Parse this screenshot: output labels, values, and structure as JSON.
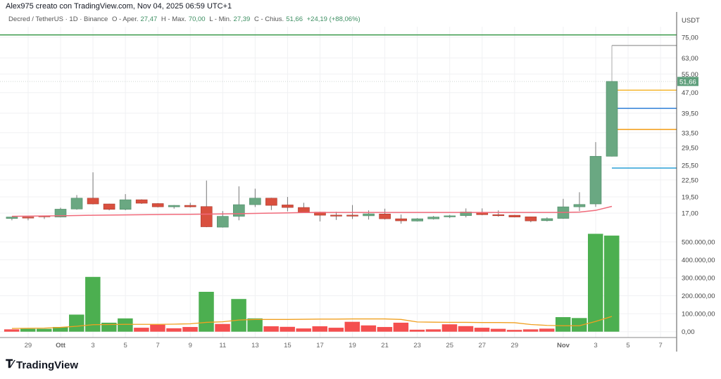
{
  "header": {
    "text": "Alex975 creato con TradingView.com, Nov 04, 2025 06:59 UTC+1"
  },
  "legend": {
    "symbol": "Decred / TetherUS · 1D · Binance",
    "open_label": "O - Aper.",
    "open": "27,47",
    "high_label": "H - Max.",
    "high": "70,00",
    "low_label": "L - Min.",
    "low": "27,39",
    "close_label": "C - Chius.",
    "close": "51,66",
    "change": "+24,19 (+88,06%)"
  },
  "price_axis": {
    "currency": "USDT",
    "scale": "log",
    "ticks": [
      {
        "value": 75,
        "label": "75,00"
      },
      {
        "value": 63,
        "label": "63,00"
      },
      {
        "value": 55,
        "label": "55,00"
      },
      {
        "value": 47,
        "label": "47,00"
      },
      {
        "value": 39.5,
        "label": "39,50"
      },
      {
        "value": 33.5,
        "label": "33,50"
      },
      {
        "value": 29.5,
        "label": "29,50"
      },
      {
        "value": 25.5,
        "label": "25,50"
      },
      {
        "value": 22.5,
        "label": "22,50"
      },
      {
        "value": 19.5,
        "label": "19,50"
      },
      {
        "value": 17,
        "label": "17,00"
      }
    ],
    "last_price": {
      "value": 51.66,
      "label": "51,66",
      "color": "#5f9f7c"
    }
  },
  "volume_axis": {
    "ticks": [
      {
        "value": 500000000,
        "label": "500.000,00"
      },
      {
        "value": 400000000,
        "label": "400.000,00"
      },
      {
        "value": 300000000,
        "label": "300.000,00"
      },
      {
        "value": 200000000,
        "label": "200.000,00"
      },
      {
        "value": 100000000,
        "label": "100.000,00"
      },
      {
        "value": 0,
        "label": "0,00"
      }
    ]
  },
  "x_axis": {
    "labels": [
      {
        "date": "2025-09-29",
        "label": "29"
      },
      {
        "date": "2025-10-01",
        "label": "Ott",
        "bold": true
      },
      {
        "date": "2025-10-03",
        "label": "3"
      },
      {
        "date": "2025-10-05",
        "label": "5"
      },
      {
        "date": "2025-10-07",
        "label": "7"
      },
      {
        "date": "2025-10-09",
        "label": "9"
      },
      {
        "date": "2025-10-11",
        "label": "11"
      },
      {
        "date": "2025-10-13",
        "label": "13"
      },
      {
        "date": "2025-10-15",
        "label": "15"
      },
      {
        "date": "2025-10-17",
        "label": "17"
      },
      {
        "date": "2025-10-19",
        "label": "19"
      },
      {
        "date": "2025-10-21",
        "label": "21"
      },
      {
        "date": "2025-10-23",
        "label": "23"
      },
      {
        "date": "2025-10-25",
        "label": "25"
      },
      {
        "date": "2025-10-27",
        "label": "27"
      },
      {
        "date": "2025-10-29",
        "label": "29"
      },
      {
        "date": "2025-11-01",
        "label": "Nov",
        "bold": true
      },
      {
        "date": "2025-11-03",
        "label": "3"
      },
      {
        "date": "2025-11-05",
        "label": "5"
      },
      {
        "date": "2025-11-07",
        "label": "7"
      }
    ]
  },
  "colors": {
    "up": "#6aa882",
    "down": "#d9503f",
    "vol_up": "#4caf50",
    "vol_down": "#f44f4f",
    "price_ma": "#f06a7a",
    "volume_ma": "#f0a020"
  },
  "chart_data": {
    "type": "candlestick",
    "candles": [
      {
        "date": "2025-09-28",
        "o": 16.25,
        "h": 16.46,
        "l": 16.0,
        "c": 16.45,
        "vol": 13000000,
        "vol_up": false,
        "ma": 16.55,
        "vma": 18000000
      },
      {
        "date": "2025-09-29",
        "o": 16.45,
        "h": 16.46,
        "l": 16.0,
        "c": 16.42,
        "vol": 16000000,
        "vol_up": true,
        "ma": 16.58,
        "vma": 19000000
      },
      {
        "date": "2025-09-30",
        "o": 16.62,
        "h": 16.65,
        "l": 16.18,
        "c": 16.58,
        "vol": 16000000,
        "vol_up": true,
        "ma": 16.6,
        "vma": 20000000
      },
      {
        "date": "2025-10-01",
        "o": 16.45,
        "h": 17.8,
        "l": 16.4,
        "c": 17.58,
        "vol": 26000000,
        "vol_up": true,
        "ma": 16.62,
        "vma": 24000000
      },
      {
        "date": "2025-10-02",
        "o": 17.6,
        "h": 19.8,
        "l": 17.5,
        "c": 19.29,
        "vol": 95000000,
        "vol_up": true,
        "ma": 16.66,
        "vma": 30000000
      },
      {
        "date": "2025-10-03",
        "o": 19.29,
        "h": 23.99,
        "l": 18.3,
        "c": 18.37,
        "vol": 305000000,
        "vol_up": true,
        "ma": 16.7,
        "vma": 39000000
      },
      {
        "date": "2025-10-04",
        "o": 18.37,
        "h": 18.4,
        "l": 17.4,
        "c": 17.55,
        "vol": 50000000,
        "vol_up": true,
        "ma": 16.72,
        "vma": 40000000
      },
      {
        "date": "2025-10-05",
        "o": 17.55,
        "h": 19.96,
        "l": 17.42,
        "c": 19.03,
        "vol": 74000000,
        "vol_up": true,
        "ma": 16.75,
        "vma": 41000000
      },
      {
        "date": "2025-10-06",
        "o": 19.03,
        "h": 19.1,
        "l": 18.37,
        "c": 18.48,
        "vol": 22000000,
        "vol_up": false,
        "ma": 16.77,
        "vma": 41000000
      },
      {
        "date": "2025-10-07",
        "o": 18.43,
        "h": 18.5,
        "l": 17.85,
        "c": 17.93,
        "vol": 39000000,
        "vol_up": false,
        "ma": 16.8,
        "vma": 41000000
      },
      {
        "date": "2025-10-08",
        "o": 17.93,
        "h": 18.2,
        "l": 17.65,
        "c": 18.15,
        "vol": 19000000,
        "vol_up": false,
        "ma": 16.82,
        "vma": 42000000
      },
      {
        "date": "2025-10-09",
        "o": 18.15,
        "h": 18.55,
        "l": 17.83,
        "c": 17.93,
        "vol": 26000000,
        "vol_up": false,
        "ma": 16.84,
        "vma": 44000000
      },
      {
        "date": "2025-10-10",
        "o": 17.97,
        "h": 22.38,
        "l": 15.1,
        "c": 15.15,
        "vol": 222000000,
        "vol_up": true,
        "ma": 16.86,
        "vma": 52000000
      },
      {
        "date": "2025-10-11",
        "o": 15.1,
        "h": 17.3,
        "l": 15.05,
        "c": 16.55,
        "vol": 43000000,
        "vol_up": false,
        "ma": 16.88,
        "vma": 55000000
      },
      {
        "date": "2025-10-12",
        "o": 16.55,
        "h": 21.31,
        "l": 16.0,
        "c": 18.26,
        "vol": 182000000,
        "vol_up": true,
        "ma": 16.92,
        "vma": 65000000
      },
      {
        "date": "2025-10-13",
        "o": 18.26,
        "h": 20.89,
        "l": 17.9,
        "c": 19.29,
        "vol": 74000000,
        "vol_up": true,
        "ma": 16.96,
        "vma": 68000000
      },
      {
        "date": "2025-10-14",
        "o": 19.29,
        "h": 19.35,
        "l": 17.45,
        "c": 18.15,
        "vol": 30000000,
        "vol_up": false,
        "ma": 17.0,
        "vma": 68000000
      },
      {
        "date": "2025-10-15",
        "o": 18.22,
        "h": 19.49,
        "l": 17.25,
        "c": 17.83,
        "vol": 27000000,
        "vol_up": false,
        "ma": 17.04,
        "vma": 68000000
      },
      {
        "date": "2025-10-16",
        "o": 17.83,
        "h": 18.55,
        "l": 17.1,
        "c": 17.15,
        "vol": 18000000,
        "vol_up": false,
        "ma": 17.08,
        "vma": 69000000
      },
      {
        "date": "2025-10-17",
        "o": 17.15,
        "h": 17.2,
        "l": 15.85,
        "c": 16.7,
        "vol": 30000000,
        "vol_up": false,
        "ma": 17.1,
        "vma": 70000000
      },
      {
        "date": "2025-10-18",
        "o": 16.72,
        "h": 17.2,
        "l": 16.05,
        "c": 16.68,
        "vol": 22000000,
        "vol_up": false,
        "ma": 17.1,
        "vma": 70000000
      },
      {
        "date": "2025-10-19",
        "o": 16.72,
        "h": 18.2,
        "l": 16.18,
        "c": 16.68,
        "vol": 55000000,
        "vol_up": false,
        "ma": 17.1,
        "vma": 71000000
      },
      {
        "date": "2025-10-20",
        "o": 16.62,
        "h": 17.4,
        "l": 16.1,
        "c": 16.9,
        "vol": 35000000,
        "vol_up": false,
        "ma": 17.1,
        "vma": 71000000
      },
      {
        "date": "2025-10-21",
        "o": 16.88,
        "h": 17.65,
        "l": 16.1,
        "c": 16.21,
        "vol": 26000000,
        "vol_up": false,
        "ma": 17.1,
        "vma": 71000000
      },
      {
        "date": "2025-10-22",
        "o": 16.21,
        "h": 16.8,
        "l": 15.55,
        "c": 15.93,
        "vol": 50000000,
        "vol_up": false,
        "ma": 17.1,
        "vma": 68000000
      },
      {
        "date": "2025-10-23",
        "o": 15.9,
        "h": 16.3,
        "l": 15.85,
        "c": 16.21,
        "vol": 11000000,
        "vol_up": false,
        "ma": 17.1,
        "vma": 54000000
      },
      {
        "date": "2025-10-24",
        "o": 16.2,
        "h": 16.6,
        "l": 16.1,
        "c": 16.45,
        "vol": 13000000,
        "vol_up": false,
        "ma": 17.1,
        "vma": 53000000
      },
      {
        "date": "2025-10-25",
        "o": 16.48,
        "h": 16.75,
        "l": 16.3,
        "c": 16.62,
        "vol": 41000000,
        "vol_up": false,
        "ma": 17.1,
        "vma": 52000000
      },
      {
        "date": "2025-10-26",
        "o": 16.65,
        "h": 17.69,
        "l": 16.4,
        "c": 17.17,
        "vol": 31000000,
        "vol_up": false,
        "ma": 17.1,
        "vma": 52000000
      },
      {
        "date": "2025-10-27",
        "o": 17.1,
        "h": 17.69,
        "l": 16.7,
        "c": 16.78,
        "vol": 22000000,
        "vol_up": false,
        "ma": 17.1,
        "vma": 51000000
      },
      {
        "date": "2025-10-28",
        "o": 16.78,
        "h": 17.4,
        "l": 16.5,
        "c": 16.76,
        "vol": 16000000,
        "vol_up": false,
        "ma": 17.1,
        "vma": 51000000
      },
      {
        "date": "2025-10-29",
        "o": 16.7,
        "h": 16.75,
        "l": 16.4,
        "c": 16.45,
        "vol": 10000000,
        "vol_up": false,
        "ma": 17.1,
        "vma": 50000000
      },
      {
        "date": "2025-10-30",
        "o": 16.48,
        "h": 16.5,
        "l": 15.74,
        "c": 15.92,
        "vol": 13000000,
        "vol_up": false,
        "ma": 17.1,
        "vma": 40000000
      },
      {
        "date": "2025-10-31",
        "o": 15.95,
        "h": 16.4,
        "l": 15.85,
        "c": 16.23,
        "vol": 17000000,
        "vol_up": false,
        "ma": 17.1,
        "vma": 35000000
      },
      {
        "date": "2025-11-01",
        "o": 16.26,
        "h": 19.18,
        "l": 16.2,
        "c": 17.93,
        "vol": 81000000,
        "vol_up": true,
        "ma": 17.1,
        "vma": 33000000
      },
      {
        "date": "2025-11-02",
        "o": 17.93,
        "h": 20.28,
        "l": 17.3,
        "c": 18.29,
        "vol": 76000000,
        "vol_up": true,
        "ma": 17.15,
        "vma": 33000000
      },
      {
        "date": "2025-11-03",
        "o": 18.37,
        "h": 30.96,
        "l": 17.93,
        "c": 27.47,
        "vol": 545000000,
        "vol_up": true,
        "ma": 17.4,
        "vma": 57000000
      },
      {
        "date": "2025-11-04",
        "o": 27.47,
        "h": 70.0,
        "l": 27.39,
        "c": 51.66,
        "vol": 535000000,
        "vol_up": true,
        "ma": 18.0,
        "vma": 85000000
      }
    ],
    "horizontal_lines": [
      {
        "value": 76.5,
        "color": "#3a9a4a",
        "from": "2025-09-27"
      },
      {
        "value": 70.0,
        "color": "#aaaaaa",
        "from": "2025-11-04"
      },
      {
        "value": 48.0,
        "color": "#f5b731",
        "from": "2025-11-04"
      },
      {
        "value": 41.17,
        "color": "#2f7fd6",
        "from": "2025-11-04"
      },
      {
        "value": 34.45,
        "color": "#f39c12",
        "from": "2025-11-04"
      },
      {
        "value": 24.86,
        "color": "#2a9fd6",
        "from": "2025-11-04"
      }
    ]
  },
  "branding": {
    "name": "TradingView"
  }
}
